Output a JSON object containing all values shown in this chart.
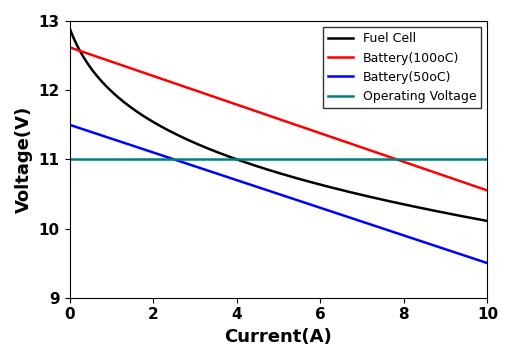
{
  "title": "",
  "xlabel": "Current(A)",
  "ylabel": "Voltage(V)",
  "xlim": [
    0,
    10
  ],
  "ylim": [
    9,
    13
  ],
  "yticks": [
    9,
    10,
    11,
    12,
    13
  ],
  "xticks": [
    0,
    2,
    4,
    6,
    8,
    10
  ],
  "operating_voltage": 11.0,
  "fuel_cell": {
    "label": "Fuel Cell",
    "color": "black",
    "v0": 12.9,
    "A": 1.5,
    "B": 1.8,
    "R": 0.17
  },
  "battery_100": {
    "label": "Battery(100oC)",
    "color": "red",
    "v0": 12.62,
    "slope": -0.207
  },
  "battery_50": {
    "label": "Battery(50oC)",
    "color": "blue",
    "v0": 11.5,
    "slope": -0.2
  },
  "operating": {
    "label": "Operating Voltage",
    "color": "#008080"
  },
  "legend_fontsize": 9,
  "axis_label_fontsize": 13,
  "tick_fontsize": 11,
  "linewidth": 1.8
}
